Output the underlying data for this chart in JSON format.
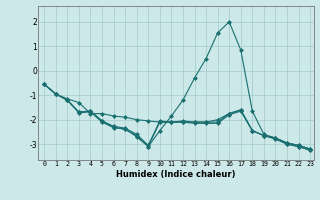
{
  "xlabel": "Humidex (Indice chaleur)",
  "bg_color": "#cce8e8",
  "grid_color": "#aacfcf",
  "line_color": "#1a7070",
  "xlim": [
    -0.5,
    23.3
  ],
  "ylim": [
    -3.65,
    2.65
  ],
  "yticks": [
    -3,
    -2,
    -1,
    0,
    1,
    2
  ],
  "xticks": [
    0,
    1,
    2,
    3,
    4,
    5,
    6,
    7,
    8,
    9,
    10,
    11,
    12,
    13,
    14,
    15,
    16,
    17,
    18,
    19,
    20,
    21,
    22,
    23
  ],
  "series1_x": [
    0,
    1,
    2,
    3,
    4,
    5,
    6,
    7,
    8,
    9,
    10,
    11,
    12,
    13,
    14,
    15,
    16,
    17,
    18,
    19,
    20,
    21,
    22,
    23
  ],
  "series1_y": [
    -0.55,
    -0.95,
    -1.15,
    -1.3,
    -1.75,
    -1.75,
    -1.85,
    -1.9,
    -2.0,
    -2.05,
    -2.1,
    -2.1,
    -2.1,
    -2.15,
    -2.15,
    -2.15,
    -1.8,
    -1.65,
    -2.45,
    -2.65,
    -2.75,
    -2.95,
    -3.05,
    -3.2
  ],
  "series2_x": [
    0,
    1,
    2,
    3,
    4,
    5,
    6,
    7,
    8,
    9,
    10,
    11,
    12,
    13,
    14,
    15,
    16,
    17,
    18,
    19,
    20,
    21,
    22,
    23
  ],
  "series2_y": [
    -0.55,
    -0.95,
    -1.2,
    -1.7,
    -1.65,
    -2.05,
    -2.3,
    -2.4,
    -2.65,
    -3.1,
    -2.1,
    -2.1,
    -2.1,
    -2.1,
    -2.1,
    -2.1,
    -1.75,
    -1.6,
    -2.45,
    -2.65,
    -2.8,
    -3.0,
    -3.1,
    -3.25
  ],
  "series3_x": [
    0,
    1,
    2,
    3,
    4,
    5,
    6,
    7,
    8,
    9,
    10,
    11,
    12,
    13,
    14,
    15,
    16,
    17,
    18,
    19,
    20,
    21,
    22,
    23
  ],
  "series3_y": [
    -0.55,
    -0.95,
    -1.2,
    -1.72,
    -1.68,
    -2.1,
    -2.33,
    -2.38,
    -2.7,
    -3.1,
    -2.45,
    -1.85,
    -1.2,
    -0.3,
    0.5,
    1.55,
    2.0,
    0.85,
    -1.65,
    -2.6,
    -2.75,
    -3.0,
    -3.1,
    -3.25
  ],
  "series4_x": [
    0,
    1,
    2,
    3,
    4,
    5,
    6,
    7,
    8,
    9,
    10,
    11,
    12,
    13,
    14,
    15,
    16,
    17,
    18,
    19,
    20,
    21,
    22,
    23
  ],
  "series4_y": [
    -0.55,
    -0.95,
    -1.2,
    -1.68,
    -1.65,
    -2.05,
    -2.27,
    -2.35,
    -2.6,
    -3.05,
    -2.05,
    -2.1,
    -2.05,
    -2.1,
    -2.1,
    -2.0,
    -1.75,
    -1.6,
    -2.45,
    -2.65,
    -2.75,
    -2.95,
    -3.05,
    -3.2
  ]
}
